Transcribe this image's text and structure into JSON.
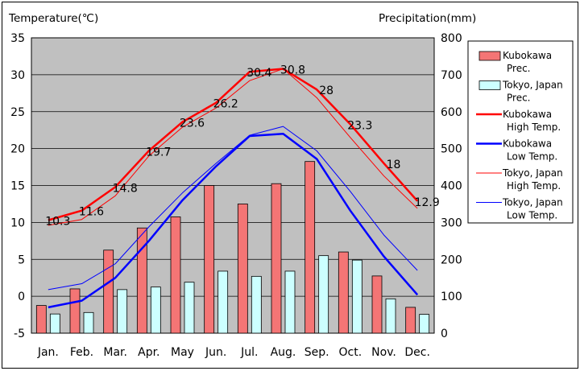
{
  "chart_data": {
    "type": "bar-line-combo",
    "title": "",
    "left_axis": {
      "label": "Temperature(℃)",
      "min": -5,
      "max": 35,
      "step": 5,
      "ticks": [
        "35",
        "30",
        "25",
        "20",
        "15",
        "10",
        "5",
        "0",
        "-5"
      ]
    },
    "right_axis": {
      "label": "Precipitation(mm)",
      "min": 0,
      "max": 800,
      "step": 100,
      "ticks": [
        "800",
        "700",
        "600",
        "500",
        "400",
        "300",
        "200",
        "100",
        "0"
      ]
    },
    "categories": [
      "Jan.",
      "Feb.",
      "Mar.",
      "Apr.",
      "May",
      "Jun.",
      "Jul.",
      "Aug.",
      "Sep.",
      "Oct.",
      "Nov.",
      "Dec."
    ],
    "bars": [
      {
        "name": "Kubokawa Prec.",
        "legend": [
          "Kubokawa",
          "Prec."
        ],
        "color": "#f47575",
        "values": [
          75,
          120,
          225,
          285,
          315,
          400,
          350,
          405,
          465,
          220,
          155,
          70
        ]
      },
      {
        "name": "Tokyo, Japan Prec.",
        "legend": [
          "Tokyo, Japan",
          "Prec."
        ],
        "color": "#ccffff",
        "values": [
          52,
          56,
          118,
          125,
          138,
          168,
          154,
          168,
          210,
          198,
          93,
          51
        ]
      }
    ],
    "lines": [
      {
        "name": "Kubokawa High Temp.",
        "legend": [
          "Kubokawa",
          "High Temp."
        ],
        "color": "#ff0000",
        "width": 2.5,
        "values": [
          10.3,
          11.6,
          14.8,
          19.7,
          23.6,
          26.2,
          30.4,
          30.8,
          28,
          23.3,
          18,
          12.9
        ],
        "labels": [
          "10.3",
          "11.6",
          "14.8",
          "19.7",
          "23.6",
          "26.2",
          "30.4",
          "30.8",
          "28",
          "23.3",
          "18",
          "12.9"
        ]
      },
      {
        "name": "Kubokawa Low Temp.",
        "legend": [
          "Kubokawa",
          "Low Temp."
        ],
        "color": "#0000ff",
        "width": 2.5,
        "values": [
          -1.5,
          -0.6,
          2.5,
          7.5,
          13.0,
          17.6,
          21.7,
          22.0,
          18.6,
          11.6,
          5.4,
          0.2
        ]
      },
      {
        "name": "Tokyo, Japan High Temp.",
        "legend": [
          "Tokyo, Japan",
          "High Temp."
        ],
        "color": "#ff0000",
        "width": 1,
        "values": [
          9.6,
          10.4,
          13.6,
          19.0,
          22.9,
          25.5,
          29.2,
          30.8,
          26.9,
          21.5,
          16.3,
          11.9
        ]
      },
      {
        "name": "Tokyo, Japan Low Temp.",
        "legend": [
          "Tokyo, Japan",
          "Low Temp."
        ],
        "color": "#0000ff",
        "width": 1,
        "values": [
          0.9,
          1.7,
          4.4,
          9.4,
          14.0,
          18.0,
          21.8,
          23.0,
          19.7,
          14.2,
          8.3,
          3.5
        ]
      }
    ],
    "grid": true,
    "legend_position": "right",
    "plot_background": "#c0c0c0"
  }
}
